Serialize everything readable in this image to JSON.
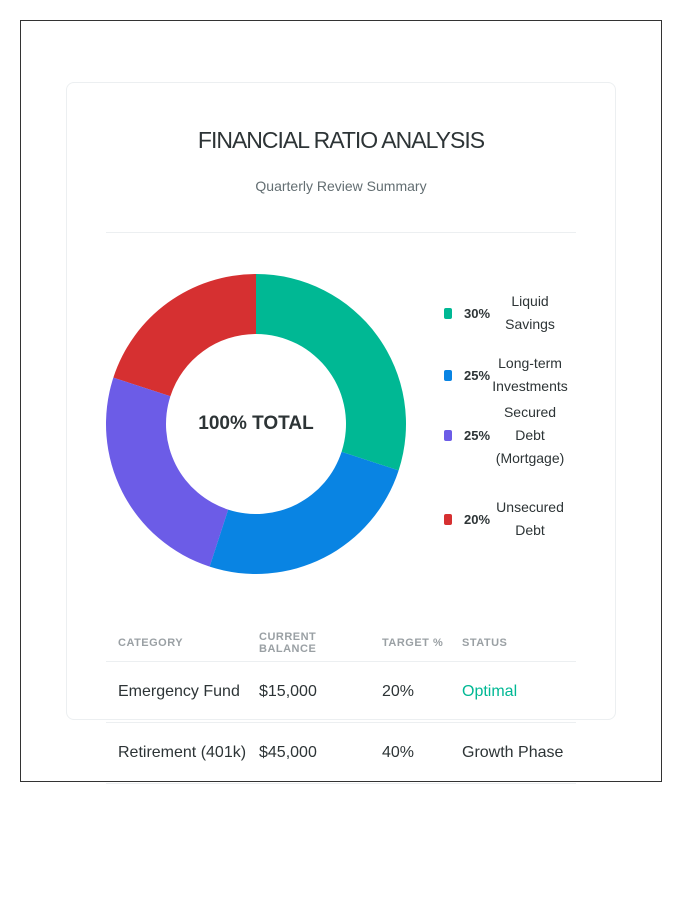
{
  "header": {
    "title": "FINANCIAL RATIO ANALYSIS",
    "subtitle": "Quarterly Review Summary"
  },
  "chart_data": {
    "type": "pie",
    "center_label": "100% TOTAL",
    "categories": [
      "Liquid Savings",
      "Long-term Investments",
      "Secured Debt (Mortgage)",
      "Unsecured Debt"
    ],
    "values": [
      30,
      25,
      25,
      20
    ],
    "value_labels": [
      "30%",
      "25%",
      "25%",
      "20%"
    ],
    "colors": [
      "#00b894",
      "#0984e3",
      "#6c5ce7",
      "#d63031"
    ]
  },
  "table": {
    "columns": [
      "CATEGORY",
      "CURRENT BALANCE",
      "TARGET %",
      "STATUS"
    ],
    "rows": [
      [
        "Emergency Fund",
        "$15,000",
        "20%",
        "Optimal"
      ],
      [
        "Retirement (401k)",
        "$45,000",
        "40%",
        "Growth Phase"
      ]
    ]
  }
}
